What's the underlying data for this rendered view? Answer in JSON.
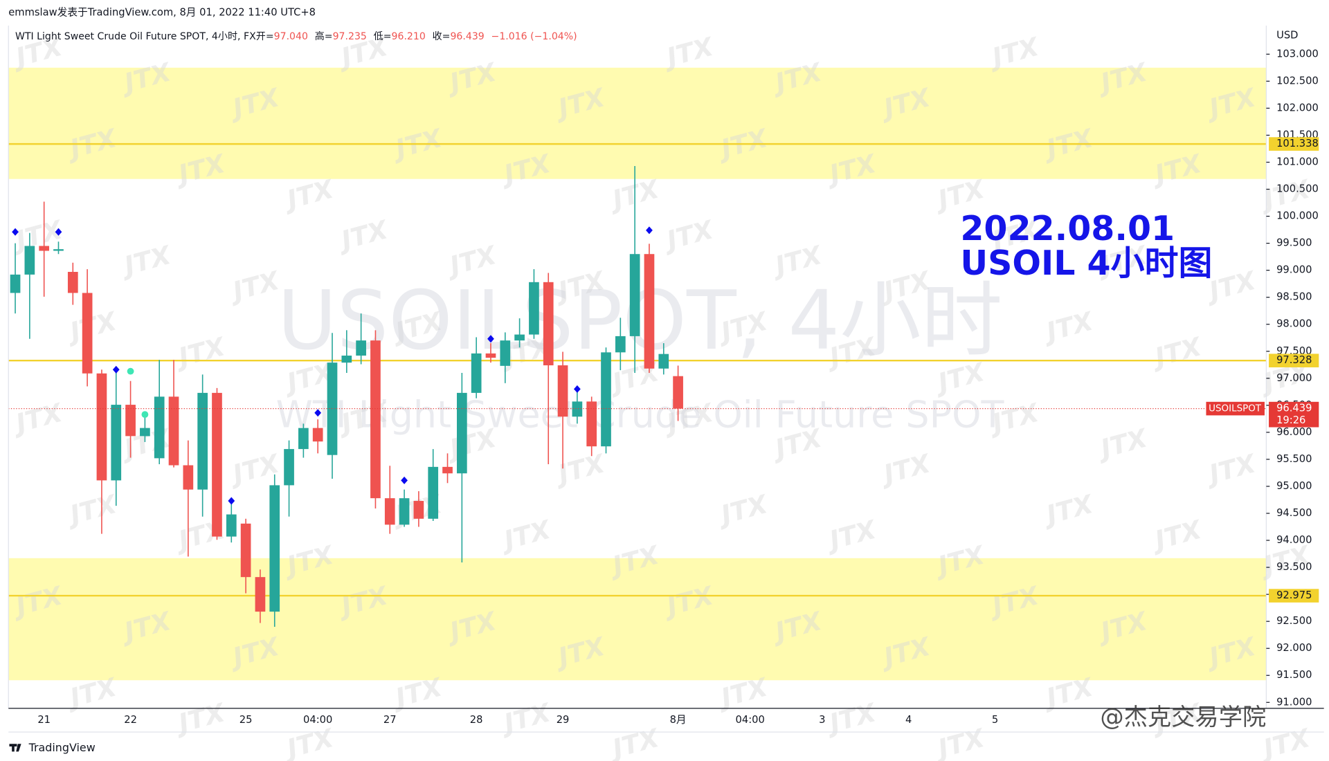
{
  "header": {
    "text": "emmslaw发表于TradingView.com, 8月 01, 2022 11:40 UTC+8"
  },
  "footer": {
    "brand": "TradingView",
    "watermark": "@杰克交易学院"
  },
  "chart_data": {
    "type": "candlestick",
    "legend": {
      "symbol": "WTI Light Sweet Crude Oil Future SPOT, 4小时, FX",
      "fields": [
        {
          "label": "开=",
          "value": "97.040"
        },
        {
          "label": "高=",
          "value": "97.235"
        },
        {
          "label": "低=",
          "value": "96.210"
        },
        {
          "label": "收=",
          "value": "96.439"
        },
        {
          "label": "",
          "value": "−1.016 (−1.04%)"
        }
      ]
    },
    "watermark_title": "USOILSPOT, 4小时",
    "watermark_subtitle": "WTI Light Sweet Crude Oil Future SPOT",
    "watermark_tag": "JTX",
    "annotation": [
      "2022.08.01",
      "USOIL 4小时图"
    ],
    "currency": "USD",
    "symbol_tag": "USOILSPOT",
    "countdown": "19:26",
    "up_color": "#26a69a",
    "down_color": "#ef5350",
    "categories": [
      null,
      null,
      "21",
      null,
      null,
      null,
      null,
      null,
      "22",
      null,
      null,
      null,
      null,
      null,
      null,
      null,
      "25",
      null,
      null,
      null,
      null,
      "04:00",
      null,
      null,
      null,
      null,
      "27",
      null,
      null,
      null,
      null,
      null,
      "28",
      null,
      null,
      null,
      null,
      null,
      "29",
      null,
      null,
      null,
      null,
      null,
      null,
      null,
      "8月",
      null,
      null,
      null,
      null,
      "04:00",
      null,
      null,
      null,
      null,
      "3",
      null,
      null,
      null,
      null,
      null,
      "4",
      null,
      null,
      null,
      null,
      null,
      "5",
      null,
      null,
      null,
      null,
      null,
      null,
      null,
      null,
      null,
      null,
      null,
      null,
      null,
      null,
      null,
      null,
      null,
      null
    ],
    "ohlc": [
      [
        98.58,
        99.5,
        98.2,
        98.92
      ],
      [
        98.92,
        99.69,
        97.73,
        99.45
      ],
      [
        99.45,
        100.27,
        98.51,
        99.36
      ],
      [
        99.36,
        99.53,
        99.3,
        99.39
      ],
      [
        98.97,
        99.14,
        98.36,
        98.58
      ],
      [
        98.58,
        99.02,
        96.85,
        97.09
      ],
      [
        97.09,
        97.16,
        94.12,
        95.11
      ],
      [
        95.11,
        97.1,
        94.64,
        96.51
      ],
      [
        96.51,
        96.95,
        95.53,
        95.93
      ],
      [
        95.93,
        96.32,
        95.82,
        96.08
      ],
      [
        95.52,
        97.34,
        95.41,
        96.66
      ],
      [
        96.66,
        97.34,
        95.35,
        95.39
      ],
      [
        95.39,
        95.85,
        93.7,
        94.94
      ],
      [
        94.94,
        97.07,
        94.44,
        96.73
      ],
      [
        96.73,
        96.82,
        94.01,
        94.07
      ],
      [
        94.07,
        94.67,
        93.96,
        94.48
      ],
      [
        94.31,
        94.4,
        93.02,
        93.32
      ],
      [
        93.32,
        93.46,
        92.47,
        92.68
      ],
      [
        92.68,
        95.22,
        92.4,
        95.02
      ],
      [
        95.02,
        95.85,
        94.44,
        95.69
      ],
      [
        95.69,
        96.16,
        95.53,
        96.08
      ],
      [
        96.08,
        96.24,
        95.61,
        95.83
      ],
      [
        95.58,
        97.84,
        95.14,
        97.29
      ],
      [
        97.29,
        97.89,
        97.1,
        97.42
      ],
      [
        97.42,
        98.2,
        97.26,
        97.7
      ],
      [
        97.7,
        97.89,
        94.59,
        94.78
      ],
      [
        94.78,
        95.38,
        94.12,
        94.29
      ],
      [
        94.29,
        94.94,
        94.25,
        94.78
      ],
      [
        94.73,
        94.91,
        94.25,
        94.4
      ],
      [
        94.4,
        95.69,
        94.36,
        95.36
      ],
      [
        95.36,
        95.61,
        95.06,
        95.24
      ],
      [
        95.24,
        97.1,
        93.59,
        96.73
      ],
      [
        96.73,
        97.76,
        96.63,
        97.46
      ],
      [
        97.46,
        97.65,
        97.29,
        97.38
      ],
      [
        97.23,
        97.85,
        96.91,
        97.7
      ],
      [
        97.7,
        98.11,
        97.57,
        97.81
      ],
      [
        97.81,
        99.02,
        97.73,
        98.78
      ],
      [
        98.78,
        98.95,
        95.41,
        97.24
      ],
      [
        97.24,
        97.49,
        95.33,
        96.29
      ],
      [
        96.29,
        96.76,
        96.16,
        96.57
      ],
      [
        96.57,
        96.66,
        95.56,
        95.74
      ],
      [
        95.74,
        97.57,
        95.61,
        97.48
      ],
      [
        97.48,
        98.12,
        97.15,
        97.78
      ],
      [
        97.78,
        100.93,
        97.1,
        99.3
      ],
      [
        99.3,
        99.49,
        97.1,
        97.18
      ],
      [
        97.18,
        97.65,
        97.07,
        97.45
      ],
      [
        97.04,
        97.235,
        96.21,
        96.439
      ],
      null,
      null,
      null,
      null,
      null,
      null,
      null,
      null,
      null,
      null,
      null,
      null,
      null,
      null,
      null,
      null,
      null,
      null,
      null,
      null,
      null,
      null,
      null,
      null,
      null,
      null,
      null,
      null,
      null,
      null,
      null,
      null,
      null,
      null,
      null,
      null,
      null,
      null,
      null,
      null
    ],
    "markers": [
      {
        "shape": "diamond",
        "color": "#0a0aef",
        "values": [
          99.71,
          null,
          null,
          99.71,
          null,
          null,
          null,
          97.16,
          null,
          null,
          null,
          null,
          null,
          null,
          null,
          94.73,
          null,
          null,
          null,
          null,
          null,
          96.36,
          null,
          null,
          null,
          null,
          null,
          95.11,
          null,
          null,
          null,
          null,
          null,
          97.73,
          null,
          null,
          null,
          null,
          null,
          96.8,
          null,
          null,
          null,
          null,
          99.74,
          null,
          null,
          null,
          null,
          null,
          null,
          null,
          null,
          null,
          null,
          null,
          null,
          null,
          null,
          null,
          null,
          null,
          null,
          null,
          null,
          null,
          null,
          null,
          null,
          null,
          null,
          null,
          null,
          null,
          null,
          null,
          null,
          null,
          null,
          null,
          null,
          null,
          null,
          null,
          null,
          null,
          null
        ]
      },
      {
        "shape": "circle",
        "color": "#3ee6b4",
        "values": [
          null,
          null,
          null,
          null,
          null,
          null,
          null,
          null,
          97.13,
          96.33,
          null,
          null,
          null,
          null,
          null,
          null,
          null,
          null,
          null,
          null,
          null,
          null,
          null,
          null,
          null,
          null,
          null,
          null,
          null,
          null,
          null,
          null,
          null,
          null,
          null,
          null,
          null,
          null,
          null,
          null,
          null,
          null,
          null,
          null,
          null,
          null,
          null,
          null,
          null,
          null,
          null,
          null,
          null,
          null,
          null,
          null,
          null,
          null,
          null,
          null,
          null,
          null,
          null,
          null,
          null,
          null,
          null,
          null,
          null,
          null,
          null,
          null,
          null,
          null,
          null,
          null,
          null,
          null,
          null,
          null,
          null,
          null,
          null,
          null,
          null,
          null,
          null
        ]
      }
    ],
    "zones": [
      {
        "from": 100.69,
        "to": 102.75,
        "color": "#fffbb0"
      },
      {
        "from": 91.41,
        "to": 93.67,
        "color": "#fffbb0"
      }
    ],
    "levels": [
      {
        "value": 101.338,
        "color": "#f2d22e"
      },
      {
        "value": 97.328,
        "color": "#f2d22e"
      },
      {
        "value": 92.975,
        "color": "#f2d22e"
      }
    ],
    "last_price_color": "#e53935",
    "ylim": [
      90.89,
      103.53
    ],
    "yticks": [
      {
        "value": 91,
        "label": "91.000"
      },
      {
        "value": 91.5,
        "label": "91.500"
      },
      {
        "value": 92,
        "label": "92.000"
      },
      {
        "value": 92.5,
        "label": "92.500"
      },
      {
        "value": 93,
        "label": "93.000"
      },
      {
        "value": 93.5,
        "label": "93.500"
      },
      {
        "value": 94,
        "label": "94.000"
      },
      {
        "value": 94.5,
        "label": "94.500"
      },
      {
        "value": 95,
        "label": "95.000"
      },
      {
        "value": 95.5,
        "label": "95.500"
      },
      {
        "value": 96,
        "label": "96.000"
      },
      {
        "value": 96.5,
        "label": "96.500"
      },
      {
        "value": 97,
        "label": "97.000"
      },
      {
        "value": 97.5,
        "label": "97.500"
      },
      {
        "value": 98,
        "label": "98.000"
      },
      {
        "value": 98.5,
        "label": "98.500"
      },
      {
        "value": 99,
        "label": "99.000"
      },
      {
        "value": 99.5,
        "label": "99.500"
      },
      {
        "value": 100,
        "label": "100.000"
      },
      {
        "value": 100.5,
        "label": "100.500"
      },
      {
        "value": 101,
        "label": "101.000"
      },
      {
        "value": 101.5,
        "label": "101.500"
      },
      {
        "value": 102,
        "label": "102.000"
      },
      {
        "value": 102.5,
        "label": "102.500"
      },
      {
        "value": 103,
        "label": "103.000"
      }
    ]
  }
}
